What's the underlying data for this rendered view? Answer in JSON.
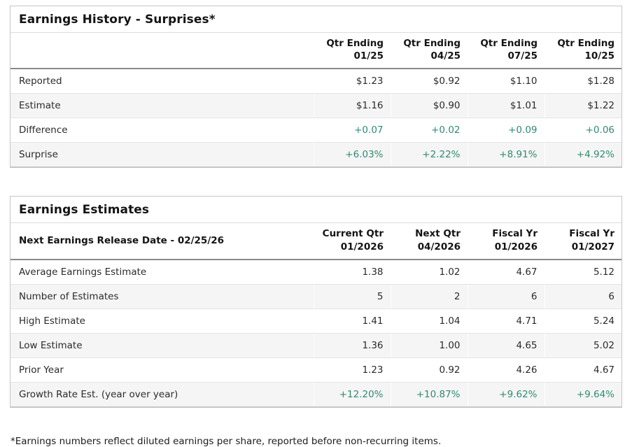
{
  "colors": {
    "positive_green": "#2e8c72",
    "header_rule_gray": "#8a8a8a",
    "stripe_gray": "#f5f5f5",
    "card_border_gray": "#c6c6c6"
  },
  "earnings_history": {
    "title": "Earnings History - Surprises*",
    "corner_label": "",
    "columns": [
      {
        "line1": "Qtr Ending",
        "line2": "01/25"
      },
      {
        "line1": "Qtr Ending",
        "line2": "04/25"
      },
      {
        "line1": "Qtr Ending",
        "line2": "07/25"
      },
      {
        "line1": "Qtr Ending",
        "line2": "10/25"
      }
    ],
    "rows": [
      {
        "label": "Reported",
        "values": [
          "$1.23",
          "$0.92",
          "$1.10",
          "$1.28"
        ],
        "green": false
      },
      {
        "label": "Estimate",
        "values": [
          "$1.16",
          "$0.90",
          "$1.01",
          "$1.22"
        ],
        "green": false
      },
      {
        "label": "Difference",
        "values": [
          "+0.07",
          "+0.02",
          "+0.09",
          "+0.06"
        ],
        "green": true
      },
      {
        "label": "Surprise",
        "values": [
          "+6.03%",
          "+2.22%",
          "+8.91%",
          "+4.92%"
        ],
        "green": true
      }
    ]
  },
  "earnings_estimates": {
    "title": "Earnings Estimates",
    "corner_label": "Next Earnings Release Date - 02/25/26",
    "columns": [
      {
        "line1": "Current Qtr",
        "line2": "01/2026"
      },
      {
        "line1": "Next Qtr",
        "line2": "04/2026"
      },
      {
        "line1": "Fiscal Yr",
        "line2": "01/2026"
      },
      {
        "line1": "Fiscal Yr",
        "line2": "01/2027"
      }
    ],
    "rows": [
      {
        "label": "Average Earnings Estimate",
        "values": [
          "1.38",
          "1.02",
          "4.67",
          "5.12"
        ],
        "green": false
      },
      {
        "label": "Number of Estimates",
        "values": [
          "5",
          "2",
          "6",
          "6"
        ],
        "green": false
      },
      {
        "label": "High Estimate",
        "values": [
          "1.41",
          "1.04",
          "4.71",
          "5.24"
        ],
        "green": false
      },
      {
        "label": "Low Estimate",
        "values": [
          "1.36",
          "1.00",
          "4.65",
          "5.02"
        ],
        "green": false
      },
      {
        "label": "Prior Year",
        "values": [
          "1.23",
          "0.92",
          "4.26",
          "4.67"
        ],
        "green": false
      },
      {
        "label": "Growth Rate Est. (year over year)",
        "values": [
          "+12.20%",
          "+10.87%",
          "+9.62%",
          "+9.64%"
        ],
        "green": true
      }
    ]
  },
  "footnote": "*Earnings numbers reflect diluted earnings per share, reported before non-recurring items."
}
